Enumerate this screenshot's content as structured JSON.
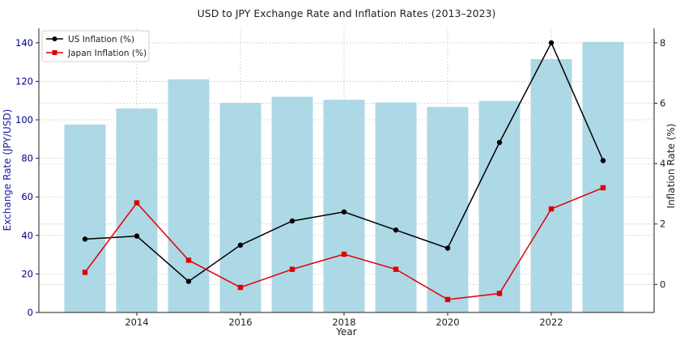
{
  "chart_data": {
    "type": "bar+line",
    "title": "USD to JPY Exchange Rate and Inflation Rates (2013–2023)",
    "xlabel": "Year",
    "ylabel_left": "Exchange Rate (JPY/USD)",
    "ylabel_right": "Inflation Rate (%)",
    "x": [
      2013,
      2014,
      2015,
      2016,
      2017,
      2018,
      2019,
      2020,
      2021,
      2022,
      2023
    ],
    "xticks": [
      2014,
      2016,
      2018,
      2020,
      2022
    ],
    "yticks_left": [
      0,
      20,
      40,
      60,
      80,
      100,
      120,
      140
    ],
    "yticks_right": [
      0,
      2,
      4,
      6,
      8
    ],
    "ylim_left": [
      0,
      147.5
    ],
    "ylim_right": [
      -0.93,
      8.48
    ],
    "grid": true,
    "legend_position": "top-left",
    "bars": {
      "name": "Exchange Rate",
      "color": "#add8e6",
      "values": [
        97.6,
        105.9,
        121.0,
        108.8,
        112.0,
        110.4,
        109.0,
        106.7,
        109.8,
        131.5,
        140.5
      ]
    },
    "series": [
      {
        "name": "US Inflation (%)",
        "color": "#000000",
        "marker": "circle",
        "values": [
          1.5,
          1.6,
          0.1,
          1.3,
          2.1,
          2.4,
          1.8,
          1.2,
          4.7,
          8.0,
          4.1
        ]
      },
      {
        "name": "Japan Inflation (%)",
        "color": "#e00000",
        "marker": "square",
        "values": [
          0.4,
          2.7,
          0.8,
          -0.1,
          0.5,
          1.0,
          0.5,
          -0.5,
          -0.3,
          2.5,
          3.2
        ]
      }
    ],
    "left_axis_color": "#00008b"
  }
}
